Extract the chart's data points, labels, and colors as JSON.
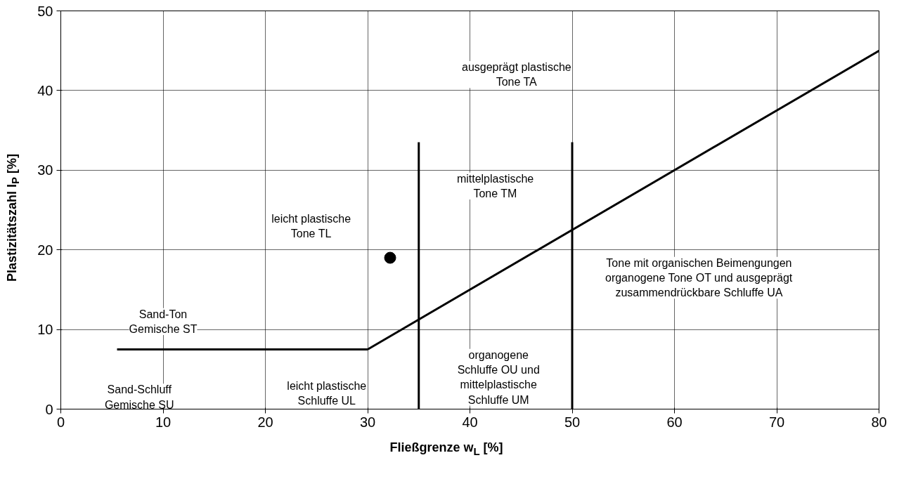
{
  "chart_data": {
    "type": "line",
    "xlabel": "Fließgrenze w$_{L}$ [%]",
    "ylabel": "Plastizitätszahl I$_{P}$ [%]",
    "xlim": [
      0,
      80
    ],
    "ylim": [
      0,
      50
    ],
    "xticks": [
      0,
      10,
      20,
      30,
      40,
      50,
      60,
      70,
      80
    ],
    "yticks": [
      0,
      10,
      20,
      30,
      40,
      50
    ],
    "grid": true,
    "marker": "none",
    "line_style": "solid",
    "series": [
      {
        "color": "#000000",
        "x": [
          5.5,
          30
        ],
        "values": [
          7.5,
          7.5
        ]
      },
      {
        "color": "#000000",
        "x": [
          30,
          80
        ],
        "values": [
          7.5,
          45
        ]
      },
      {
        "color": "#000000",
        "x": [
          35,
          35
        ],
        "values": [
          0,
          33.5
        ]
      },
      {
        "color": "#000000",
        "x": [
          50,
          50
        ],
        "values": [
          0,
          33.5
        ]
      },
      {
        "type": "scatter",
        "marker": "circle",
        "color": "#000000",
        "x": [
          32.2
        ],
        "values": [
          19
        ]
      }
    ],
    "annotations": [
      "ausgeprägt plastische\nTone TA",
      "mittelplastische\nTone TM",
      "leicht plastische\nTone TL",
      "Tone mit organischen Beimengungen\norganogene Tone OT und ausgeprägt\nzusammendrückbare Schluffe UA",
      "Sand-Ton\nGemische ST",
      "Sand-Schluff\nGemische SU",
      "leicht plastische\nSchluffe UL",
      "organogene\nSchluffe OU und\nmittelplastische\nSchluffe UM"
    ]
  }
}
